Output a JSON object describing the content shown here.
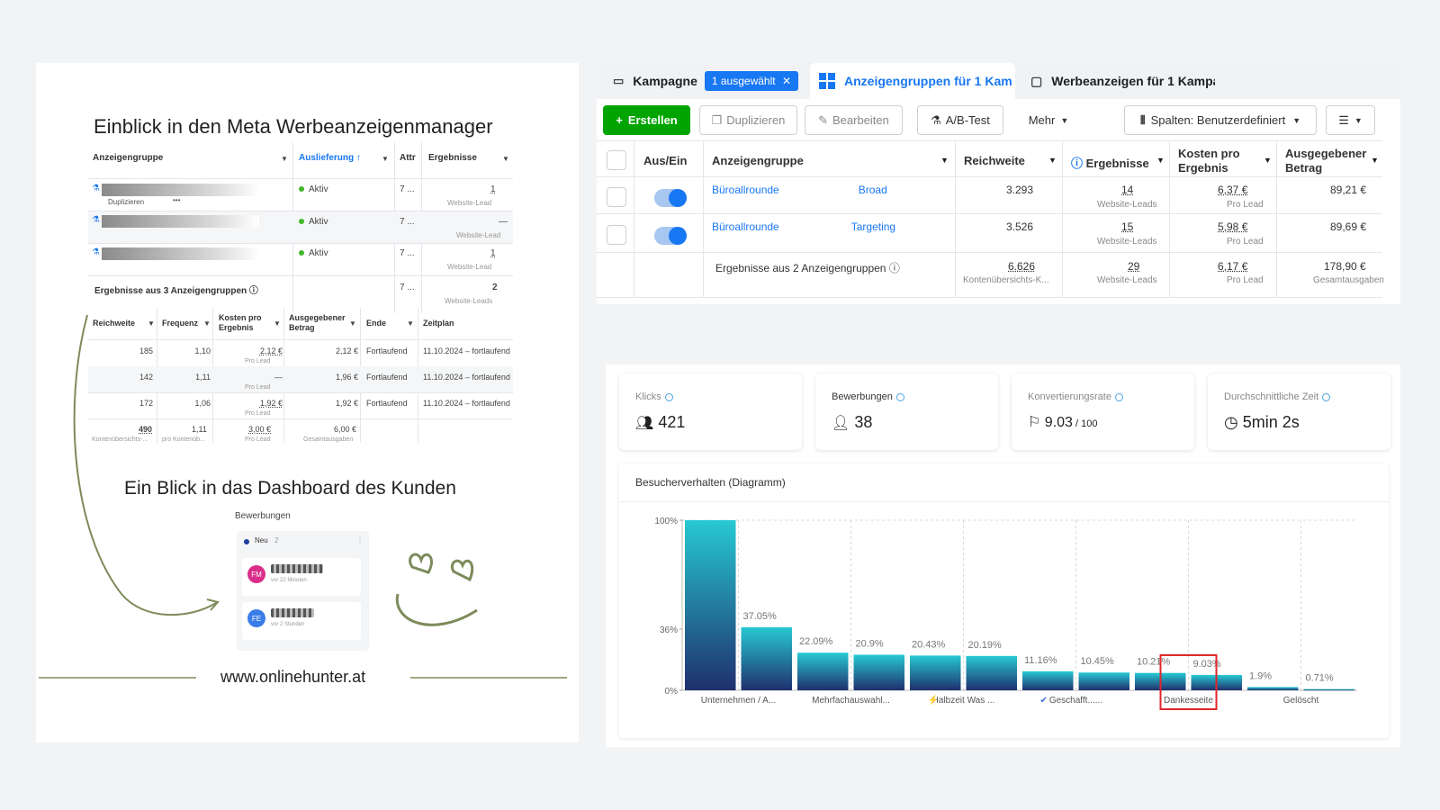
{
  "left": {
    "title": "Einblick in den Meta Werbeanzeigenmanager",
    "table1": {
      "headers": [
        "Anzeigengruppe",
        "Auslieferung ↑",
        "Attr",
        "Ergebnisse"
      ],
      "rows": [
        {
          "status": "Aktiv",
          "attr": "7 ...",
          "result": "1",
          "result_sub": "Website-Lead",
          "action": "Duplizieren"
        },
        {
          "status": "Aktiv",
          "attr": "7 ...",
          "result": "—",
          "result_sub": "Website-Lead"
        },
        {
          "status": "Aktiv",
          "attr": "7 ...",
          "result": "1",
          "result_sub": "Website-Lead"
        }
      ],
      "summary_label": "Ergebnisse aus 3 Anzeigengruppen",
      "summary_attr": "7 ...",
      "summary_result": "2",
      "summary_sub": "Website-Leads"
    },
    "table2": {
      "headers": [
        "Reichweite",
        "Frequenz",
        "Kosten pro Ergebnis",
        "Ausgegebener Betrag",
        "Ende",
        "Zeitplan"
      ],
      "rows": [
        {
          "reach": "185",
          "freq": "1,10",
          "cost": "2,12 €",
          "cost_sub": "Pro Lead",
          "spent": "2,12 €",
          "end": "Fortlaufend",
          "plan": "11.10.2024 – fortlaufend"
        },
        {
          "reach": "142",
          "freq": "1,11",
          "cost": "—",
          "cost_sub": "Pro Lead",
          "spent": "1,96 €",
          "end": "Fortlaufend",
          "plan": "11.10.2024 – fortlaufend"
        },
        {
          "reach": "172",
          "freq": "1,06",
          "cost": "1,92 €",
          "cost_sub": "Pro Lead",
          "spent": "1,92 €",
          "end": "Fortlaufend",
          "plan": "11.10.2024 – fortlaufend"
        }
      ],
      "total": {
        "reach": "490",
        "reach_sub": "Kontenübersichts-...",
        "freq": "1,11",
        "freq_sub": "pro Kontenüb...",
        "cost": "3,00 €",
        "cost_sub": "Pro Lead",
        "spent": "6,00 €",
        "spent_sub": "Gesamtausgaben"
      }
    },
    "dashboard_title": "Ein Blick in das Dashboard des Kunden",
    "mini": {
      "title": "Bewerbungen",
      "column": "Neu",
      "count": "2",
      "cards": [
        {
          "initials": "FM",
          "time": "vor 22 Minuten"
        },
        {
          "initials": "FE",
          "time": "vor 2 Stunden"
        }
      ]
    },
    "website": "www.onlinehunter.at"
  },
  "tabs": {
    "campaign": "Kampagne",
    "selected": "1 ausgewählt",
    "adgroups": "Anzeigengruppen für 1 Kam",
    "ads": "Werbeanzeigen für 1 Kampa"
  },
  "toolbar": {
    "create": "Erstellen",
    "duplicate": "Duplizieren",
    "edit": "Bearbeiten",
    "abtest": "A/B-Test",
    "more": "Mehr",
    "columns": "Spalten: Benutzerdefiniert"
  },
  "adtable": {
    "headers": {
      "toggle": "Aus/Ein",
      "group": "Anzeigengruppe",
      "reach": "Reichweite",
      "results": "Ergebnisse",
      "cost": "Kosten pro Ergebnis",
      "spent": "Ausgegebener Betrag"
    },
    "rows": [
      {
        "name_a": "Büroallrounde",
        "name_b": "Broad",
        "reach": "3.293",
        "results": "14",
        "results_sub": "Website-Leads",
        "cost": "6,37 €",
        "cost_sub": "Pro Lead",
        "spent": "89,21 €"
      },
      {
        "name_a": "Büroallrounde",
        "name_b": "Targeting",
        "reach": "3.526",
        "results": "15",
        "results_sub": "Website-Leads",
        "cost": "5,98 €",
        "cost_sub": "Pro Lead",
        "spent": "89,69 €"
      }
    ],
    "summary": {
      "label": "Ergebnisse aus 2 Anzeigengruppen",
      "reach": "6.626",
      "reach_sub": "Kontenübersichts-K...",
      "results": "29",
      "results_sub": "Website-Leads",
      "cost": "6,17 €",
      "cost_sub": "Pro Lead",
      "spent": "178,90 €",
      "spent_sub": "Gesamtausgaben"
    }
  },
  "kpis": [
    {
      "label": "Klicks",
      "value": "421",
      "icon": "users-icon"
    },
    {
      "label": "Bewerbungen",
      "value": "38",
      "icon": "user-icon"
    },
    {
      "label": "Konvertierungsrate",
      "value": "9.03",
      "suffix": " / 100",
      "icon": "flag-icon"
    },
    {
      "label": "Durchschnittliche Zeit",
      "value": "5min 2s",
      "icon": "clock-icon"
    }
  ],
  "chart_title": "Besucherverhalten (Diagramm)",
  "chart_data": {
    "type": "bar",
    "title": "Besucherverhalten (Diagramm)",
    "y_ticks": [
      "100%",
      "36%",
      "0%"
    ],
    "values": [
      100,
      37.05,
      22.09,
      20.9,
      20.43,
      20.19,
      11.16,
      10.45,
      10.21,
      9.03,
      1.9,
      0.71
    ],
    "labels": [
      "",
      "37.05%",
      "22.09%",
      "20.9%",
      "20.43%",
      "20.19%",
      "11.16%",
      "10.45%",
      "10.21%",
      "9.03%",
      "1.9%",
      "0.71%"
    ],
    "x_labels": [
      "Unternehmen / A...",
      "Mehrfachauswahl...",
      "Halbzeit Was ...",
      "Geschafft......",
      "Dankesseite",
      "Gelöscht"
    ],
    "highlight_color": "#e0262b",
    "bar_top_color": "#27c9d3",
    "bar_bottom_color": "#1f2f6e"
  }
}
